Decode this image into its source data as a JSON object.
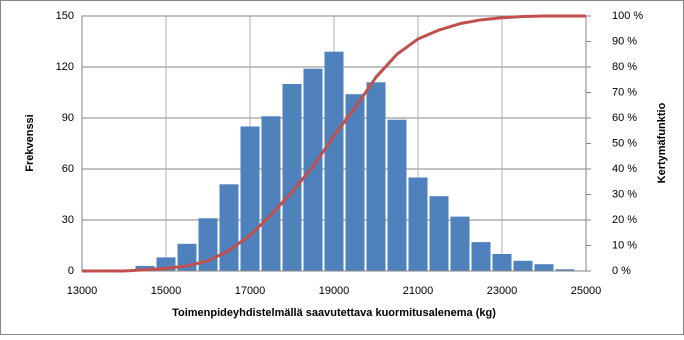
{
  "chart_data": {
    "type": "histogram",
    "xlabel": "Toimenpideyhdistelmällä saavutettava kuormitusalenema (kg)",
    "ylabel": "Frekvenssi",
    "y2label": "Kertymäfunktio",
    "bins": [
      14250,
      14750,
      15250,
      15750,
      16250,
      16750,
      17250,
      17750,
      18250,
      18750,
      19250,
      19750,
      20250,
      20750,
      21250,
      21750,
      22250,
      22750,
      23250,
      23750,
      24250,
      24750
    ],
    "counts": [
      3,
      8,
      16,
      31,
      51,
      85,
      91,
      110,
      119,
      129,
      104,
      111,
      89,
      55,
      44,
      32,
      17,
      10,
      6,
      4,
      1
    ],
    "color": "#4f81bd",
    "series": [
      {
        "name": "Kertymäfunktio",
        "color": "#c0504d",
        "axis": "y2",
        "x": [
          13000,
          13500,
          14000,
          14500,
          15000,
          15500,
          16000,
          16500,
          17000,
          17500,
          18000,
          18500,
          19000,
          19500,
          20000,
          20500,
          21000,
          21500,
          22000,
          22500,
          23000,
          23500,
          24000,
          24500,
          25000
        ],
        "values": [
          0,
          0,
          0,
          0.5,
          1,
          2,
          4,
          8,
          14,
          22,
          31,
          41,
          53,
          64,
          76,
          85,
          91,
          94.5,
          97,
          98.5,
          99.3,
          99.8,
          100,
          100,
          100
        ]
      }
    ],
    "xlim": [
      13000,
      25000
    ],
    "xticks": [
      13000,
      15000,
      17000,
      19000,
      21000,
      23000,
      25000
    ],
    "ylim": [
      0,
      150
    ],
    "yticks": [
      0,
      30,
      60,
      90,
      120,
      150
    ],
    "y2lim": [
      0,
      100
    ],
    "y2ticks": [
      {
        "value": 0,
        "label": "0 %"
      },
      {
        "value": 10,
        "label": "10 %"
      },
      {
        "value": 20,
        "label": "20 %"
      },
      {
        "value": 30,
        "label": "30 %"
      },
      {
        "value": 40,
        "label": "40 %"
      },
      {
        "value": 50,
        "label": "50 %"
      },
      {
        "value": 60,
        "label": "60 %"
      },
      {
        "value": 70,
        "label": "70 %"
      },
      {
        "value": 80,
        "label": "80 %"
      },
      {
        "value": 90,
        "label": "90 %"
      },
      {
        "value": 100,
        "label": "100 %"
      }
    ],
    "grid": true
  }
}
